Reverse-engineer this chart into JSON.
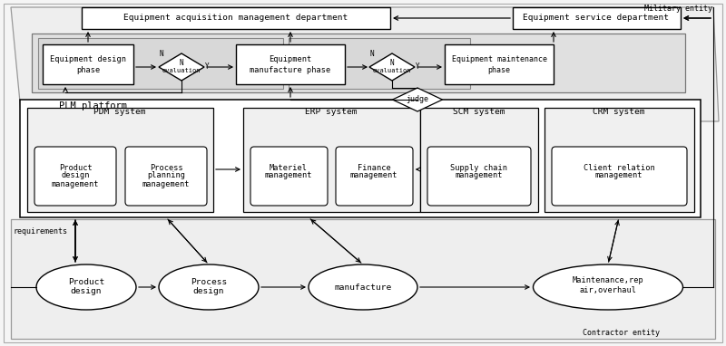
{
  "figsize": [
    8.0,
    3.82
  ],
  "dpi": 100,
  "bg_color": "#ffffff",
  "military_label": "Military entity",
  "contractor_label": "Contractor entity",
  "requirements_label": "requirements",
  "plm_label": "PLM platform",
  "pdm_label": "PDM system",
  "erp_label": "ERP system",
  "scm_label": "SCM system",
  "crm_label": "CRM system"
}
